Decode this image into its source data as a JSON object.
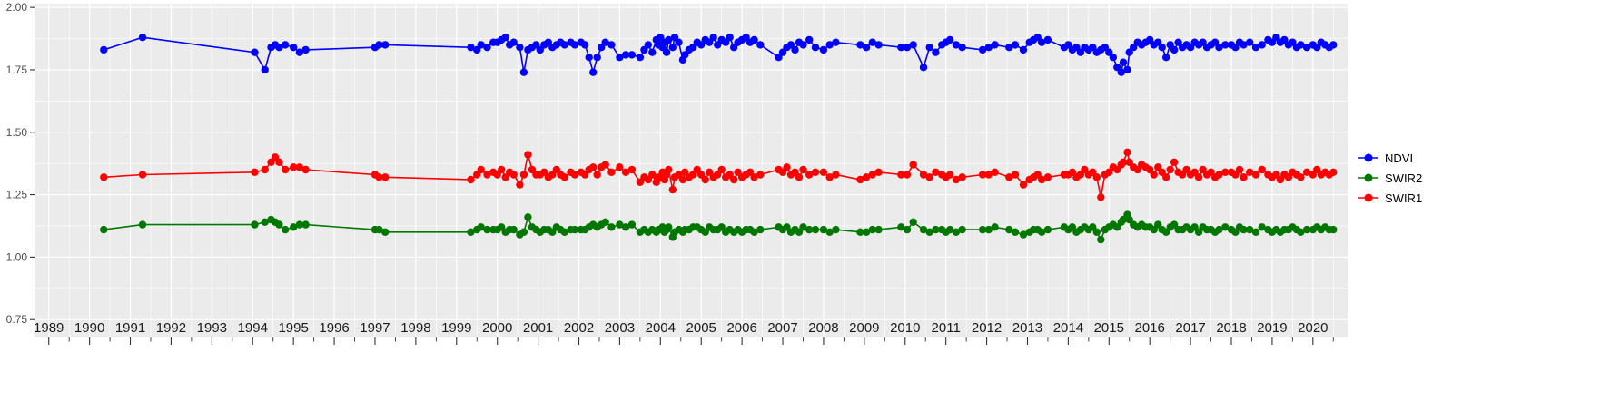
{
  "figure": {
    "background": "#FFFFFF"
  },
  "chart_data": {
    "type": "line",
    "legend_position": "right",
    "grid": true,
    "xlim": [
      1988.65,
      2020.85
    ],
    "ylim": [
      0.678,
      2.015
    ],
    "x_tick_labels": [
      "1989",
      "1990",
      "1991",
      "1992",
      "1993",
      "1994",
      "1995",
      "1996",
      "1997",
      "1998",
      "1999",
      "2000",
      "2001",
      "2002",
      "2003",
      "2004",
      "2005",
      "2006",
      "2007",
      "2008",
      "2009",
      "2010",
      "2011",
      "2012",
      "2013",
      "2014",
      "2015",
      "2016",
      "2017",
      "2018",
      "2019",
      "2020"
    ],
    "y_tick_labels": [
      "0.75",
      "1.00",
      "1.25",
      "1.50",
      "1.75",
      "2.00"
    ],
    "layout": {
      "panel_background": "#EBEBEB",
      "grid_color": "#FFFFFF",
      "tick_color": "#333333",
      "axis_text_color": "#4D4D4D",
      "x_label_color": "#1A1A1A"
    },
    "x": [
      1990.35,
      1991.3,
      1994.05,
      1994.3,
      1994.45,
      1994.55,
      1994.65,
      1994.8,
      1995.0,
      1995.15,
      1995.3,
      1997.0,
      1997.1,
      1997.25,
      1999.35,
      1999.5,
      1999.6,
      1999.75,
      1999.9,
      2000.0,
      2000.1,
      2000.2,
      2000.3,
      2000.4,
      2000.55,
      2000.65,
      2000.75,
      2000.85,
      2000.95,
      2001.05,
      2001.15,
      2001.25,
      2001.35,
      2001.45,
      2001.55,
      2001.65,
      2001.8,
      2001.9,
      2002.05,
      2002.15,
      2002.25,
      2002.35,
      2002.45,
      2002.55,
      2002.65,
      2002.8,
      2003.0,
      2003.15,
      2003.3,
      2003.5,
      2003.6,
      2003.7,
      2003.8,
      2003.9,
      2003.95,
      2004.0,
      2004.05,
      2004.1,
      2004.15,
      2004.2,
      2004.3,
      2004.35,
      2004.45,
      2004.55,
      2004.6,
      2004.7,
      2004.8,
      2004.9,
      2005.0,
      2005.1,
      2005.2,
      2005.3,
      2005.4,
      2005.5,
      2005.6,
      2005.7,
      2005.8,
      2005.9,
      2006.0,
      2006.1,
      2006.2,
      2006.3,
      2006.45,
      2006.9,
      2007.0,
      2007.1,
      2007.2,
      2007.3,
      2007.4,
      2007.5,
      2007.65,
      2007.8,
      2008.0,
      2008.15,
      2008.3,
      2008.9,
      2009.05,
      2009.2,
      2009.35,
      2009.9,
      2010.05,
      2010.2,
      2010.45,
      2010.6,
      2010.75,
      2010.9,
      2011.0,
      2011.1,
      2011.25,
      2011.4,
      2011.9,
      2012.05,
      2012.2,
      2012.55,
      2012.7,
      2012.9,
      2013.05,
      2013.15,
      2013.25,
      2013.35,
      2013.5,
      2013.9,
      2014.0,
      2014.1,
      2014.2,
      2014.3,
      2014.4,
      2014.5,
      2014.6,
      2014.7,
      2014.8,
      2014.9,
      2015.0,
      2015.1,
      2015.2,
      2015.3,
      2015.35,
      2015.45,
      2015.5,
      2015.6,
      2015.7,
      2015.8,
      2015.9,
      2016.0,
      2016.1,
      2016.2,
      2016.3,
      2016.4,
      2016.5,
      2016.6,
      2016.7,
      2016.8,
      2016.9,
      2017.0,
      2017.1,
      2017.2,
      2017.3,
      2017.4,
      2017.5,
      2017.6,
      2017.7,
      2017.85,
      2018.0,
      2018.1,
      2018.2,
      2018.3,
      2018.45,
      2018.6,
      2018.75,
      2018.9,
      2019.0,
      2019.1,
      2019.2,
      2019.3,
      2019.4,
      2019.5,
      2019.6,
      2019.7,
      2019.85,
      2020.0,
      2020.1,
      2020.2,
      2020.3,
      2020.4,
      2020.5
    ],
    "series": [
      {
        "name": "NDVI",
        "color": "#0000FF",
        "values": [
          1.83,
          1.88,
          1.82,
          1.75,
          1.84,
          1.85,
          1.84,
          1.85,
          1.84,
          1.82,
          1.83,
          1.84,
          1.85,
          1.85,
          1.84,
          1.83,
          1.85,
          1.84,
          1.86,
          1.86,
          1.87,
          1.88,
          1.85,
          1.86,
          1.84,
          1.74,
          1.83,
          1.84,
          1.85,
          1.83,
          1.85,
          1.86,
          1.84,
          1.85,
          1.86,
          1.85,
          1.86,
          1.85,
          1.86,
          1.85,
          1.8,
          1.74,
          1.8,
          1.84,
          1.86,
          1.85,
          1.8,
          1.81,
          1.81,
          1.8,
          1.83,
          1.85,
          1.82,
          1.87,
          1.85,
          1.88,
          1.84,
          1.86,
          1.82,
          1.87,
          1.84,
          1.88,
          1.86,
          1.79,
          1.81,
          1.83,
          1.84,
          1.86,
          1.85,
          1.87,
          1.86,
          1.88,
          1.85,
          1.87,
          1.86,
          1.88,
          1.84,
          1.86,
          1.87,
          1.88,
          1.86,
          1.87,
          1.85,
          1.8,
          1.82,
          1.84,
          1.85,
          1.83,
          1.86,
          1.85,
          1.87,
          1.84,
          1.83,
          1.85,
          1.86,
          1.85,
          1.84,
          1.86,
          1.85,
          1.84,
          1.84,
          1.85,
          1.76,
          1.84,
          1.82,
          1.85,
          1.86,
          1.87,
          1.85,
          1.84,
          1.83,
          1.84,
          1.85,
          1.84,
          1.85,
          1.83,
          1.86,
          1.87,
          1.88,
          1.86,
          1.87,
          1.84,
          1.85,
          1.83,
          1.84,
          1.82,
          1.84,
          1.83,
          1.84,
          1.82,
          1.83,
          1.84,
          1.82,
          1.8,
          1.76,
          1.74,
          1.78,
          1.75,
          1.82,
          1.84,
          1.86,
          1.85,
          1.86,
          1.87,
          1.85,
          1.86,
          1.84,
          1.8,
          1.85,
          1.83,
          1.86,
          1.84,
          1.85,
          1.84,
          1.86,
          1.85,
          1.86,
          1.84,
          1.85,
          1.86,
          1.84,
          1.85,
          1.85,
          1.84,
          1.86,
          1.85,
          1.86,
          1.84,
          1.85,
          1.87,
          1.86,
          1.88,
          1.86,
          1.87,
          1.85,
          1.86,
          1.84,
          1.85,
          1.84,
          1.85,
          1.84,
          1.86,
          1.85,
          1.84,
          1.85
        ]
      },
      {
        "name": "SWIR2",
        "color": "#007800",
        "values": [
          1.11,
          1.13,
          1.13,
          1.14,
          1.15,
          1.14,
          1.13,
          1.11,
          1.12,
          1.13,
          1.13,
          1.11,
          1.11,
          1.1,
          1.1,
          1.11,
          1.12,
          1.11,
          1.11,
          1.11,
          1.12,
          1.1,
          1.11,
          1.11,
          1.09,
          1.1,
          1.16,
          1.12,
          1.11,
          1.1,
          1.11,
          1.11,
          1.1,
          1.12,
          1.11,
          1.1,
          1.11,
          1.11,
          1.11,
          1.11,
          1.12,
          1.13,
          1.12,
          1.13,
          1.14,
          1.12,
          1.13,
          1.12,
          1.13,
          1.1,
          1.11,
          1.1,
          1.11,
          1.1,
          1.11,
          1.11,
          1.12,
          1.1,
          1.11,
          1.12,
          1.08,
          1.1,
          1.11,
          1.1,
          1.11,
          1.11,
          1.12,
          1.12,
          1.11,
          1.1,
          1.12,
          1.11,
          1.11,
          1.12,
          1.1,
          1.11,
          1.1,
          1.11,
          1.1,
          1.11,
          1.11,
          1.1,
          1.11,
          1.12,
          1.11,
          1.12,
          1.1,
          1.11,
          1.1,
          1.12,
          1.11,
          1.11,
          1.11,
          1.1,
          1.11,
          1.1,
          1.1,
          1.11,
          1.11,
          1.12,
          1.11,
          1.14,
          1.11,
          1.1,
          1.11,
          1.11,
          1.1,
          1.11,
          1.1,
          1.11,
          1.11,
          1.11,
          1.12,
          1.11,
          1.1,
          1.09,
          1.1,
          1.11,
          1.11,
          1.1,
          1.11,
          1.12,
          1.11,
          1.12,
          1.1,
          1.11,
          1.12,
          1.11,
          1.12,
          1.1,
          1.07,
          1.11,
          1.12,
          1.13,
          1.12,
          1.14,
          1.15,
          1.17,
          1.15,
          1.13,
          1.12,
          1.13,
          1.12,
          1.12,
          1.11,
          1.13,
          1.11,
          1.1,
          1.12,
          1.13,
          1.11,
          1.11,
          1.12,
          1.11,
          1.12,
          1.1,
          1.12,
          1.11,
          1.11,
          1.1,
          1.11,
          1.12,
          1.11,
          1.1,
          1.12,
          1.11,
          1.11,
          1.1,
          1.12,
          1.11,
          1.1,
          1.11,
          1.1,
          1.11,
          1.11,
          1.12,
          1.11,
          1.1,
          1.11,
          1.11,
          1.12,
          1.11,
          1.12,
          1.11,
          1.11
        ]
      },
      {
        "name": "SWIR1",
        "color": "#FF0000",
        "values": [
          1.32,
          1.33,
          1.34,
          1.35,
          1.38,
          1.4,
          1.38,
          1.35,
          1.36,
          1.36,
          1.35,
          1.33,
          1.32,
          1.32,
          1.31,
          1.33,
          1.35,
          1.33,
          1.34,
          1.33,
          1.35,
          1.32,
          1.34,
          1.33,
          1.29,
          1.33,
          1.41,
          1.35,
          1.33,
          1.33,
          1.34,
          1.32,
          1.33,
          1.35,
          1.33,
          1.32,
          1.34,
          1.33,
          1.34,
          1.33,
          1.35,
          1.36,
          1.33,
          1.36,
          1.37,
          1.34,
          1.36,
          1.34,
          1.35,
          1.3,
          1.32,
          1.31,
          1.33,
          1.3,
          1.32,
          1.32,
          1.34,
          1.31,
          1.33,
          1.35,
          1.27,
          1.32,
          1.33,
          1.31,
          1.34,
          1.32,
          1.33,
          1.35,
          1.33,
          1.31,
          1.34,
          1.32,
          1.33,
          1.35,
          1.32,
          1.33,
          1.31,
          1.34,
          1.32,
          1.33,
          1.34,
          1.32,
          1.33,
          1.35,
          1.34,
          1.36,
          1.33,
          1.34,
          1.32,
          1.35,
          1.33,
          1.34,
          1.34,
          1.32,
          1.33,
          1.31,
          1.32,
          1.33,
          1.34,
          1.33,
          1.33,
          1.37,
          1.33,
          1.32,
          1.34,
          1.33,
          1.32,
          1.33,
          1.31,
          1.32,
          1.33,
          1.33,
          1.34,
          1.32,
          1.33,
          1.29,
          1.31,
          1.32,
          1.33,
          1.31,
          1.32,
          1.33,
          1.33,
          1.34,
          1.32,
          1.33,
          1.35,
          1.33,
          1.34,
          1.32,
          1.24,
          1.33,
          1.34,
          1.36,
          1.35,
          1.37,
          1.38,
          1.42,
          1.38,
          1.36,
          1.35,
          1.37,
          1.36,
          1.35,
          1.33,
          1.36,
          1.34,
          1.32,
          1.35,
          1.38,
          1.34,
          1.33,
          1.35,
          1.33,
          1.34,
          1.32,
          1.35,
          1.33,
          1.34,
          1.32,
          1.33,
          1.34,
          1.34,
          1.33,
          1.35,
          1.32,
          1.34,
          1.33,
          1.35,
          1.33,
          1.32,
          1.33,
          1.31,
          1.33,
          1.32,
          1.34,
          1.33,
          1.32,
          1.34,
          1.33,
          1.35,
          1.33,
          1.34,
          1.33,
          1.34
        ]
      }
    ]
  }
}
